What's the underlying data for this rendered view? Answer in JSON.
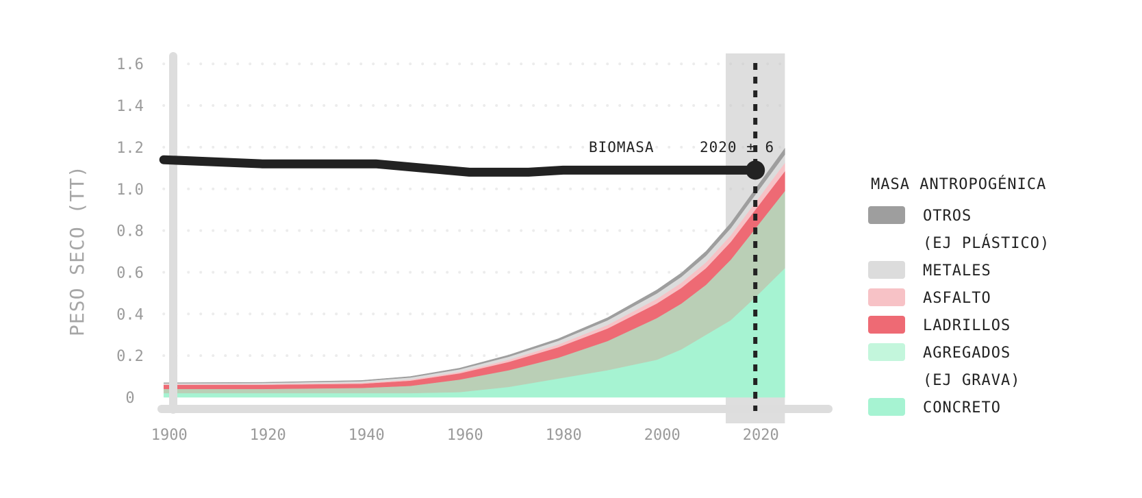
{
  "chart_data": {
    "type": "area",
    "ylabel": "PESO SECO (TT)",
    "xlabel": "",
    "xlim": [
      1899,
      2026.5
    ],
    "ylim": [
      0,
      1.65
    ],
    "x_ticks": [
      1900,
      1920,
      1940,
      1960,
      1980,
      2000,
      2020
    ],
    "y_ticks": [
      {
        "value": 0,
        "label": "0"
      },
      {
        "value": 0.2,
        "label": "0.2"
      },
      {
        "value": 0.4,
        "label": "0.4"
      },
      {
        "value": 0.6,
        "label": "0.6"
      },
      {
        "value": 0.8,
        "label": "0.8"
      },
      {
        "value": 1.0,
        "label": "1.0"
      },
      {
        "value": 1.2,
        "label": "1.2"
      },
      {
        "value": 1.4,
        "label": "1.4"
      },
      {
        "value": 1.6,
        "label": "1.6"
      }
    ],
    "grid": "horizontal-dotted",
    "x": [
      1900,
      1920,
      1940,
      1950,
      1960,
      1970,
      1980,
      1990,
      2000,
      2005,
      2010,
      2015,
      2020,
      2026
    ],
    "series": [
      {
        "name": "CONCRETO",
        "color": "#a6f3d2",
        "values": [
          0.02,
          0.02,
          0.02,
          0.02,
          0.025,
          0.05,
          0.09,
          0.13,
          0.18,
          0.23,
          0.3,
          0.37,
          0.48,
          0.62
        ]
      },
      {
        "name": "AGREGADOS (EJ GRAVA)",
        "color": "#bacfb6",
        "values": [
          0.02,
          0.02,
          0.025,
          0.035,
          0.06,
          0.08,
          0.1,
          0.14,
          0.2,
          0.22,
          0.24,
          0.29,
          0.33,
          0.37
        ]
      },
      {
        "name": "LADRILLOS",
        "color": "#ee6a74",
        "values": [
          0.02,
          0.02,
          0.02,
          0.025,
          0.03,
          0.04,
          0.05,
          0.06,
          0.07,
          0.075,
          0.08,
          0.085,
          0.09,
          0.095
        ]
      },
      {
        "name": "ASFALTO",
        "color": "#f7c2c6",
        "values": [
          0.002,
          0.003,
          0.004,
          0.005,
          0.007,
          0.01,
          0.013,
          0.017,
          0.022,
          0.025,
          0.028,
          0.032,
          0.035,
          0.04
        ]
      },
      {
        "name": "METALES",
        "color": "#dcdcdc",
        "values": [
          0.005,
          0.006,
          0.008,
          0.01,
          0.012,
          0.015,
          0.018,
          0.022,
          0.026,
          0.028,
          0.031,
          0.034,
          0.037,
          0.04
        ]
      },
      {
        "name": "OTROS (EJ PLÁSTICO)",
        "color": "#9e9e9e",
        "values": [
          0.003,
          0.003,
          0.004,
          0.005,
          0.006,
          0.008,
          0.01,
          0.013,
          0.017,
          0.019,
          0.022,
          0.025,
          0.028,
          0.03
        ]
      }
    ],
    "biomass": {
      "name": "BIOMASA",
      "color": "#222222",
      "x": [
        1900,
        1920,
        1943,
        1962,
        1974,
        1981,
        2020
      ],
      "values": [
        1.14,
        1.12,
        1.12,
        1.08,
        1.08,
        1.09,
        1.09
      ],
      "label": "BIOMASA",
      "marker_label": "2020 ± 6"
    },
    "highlight_range": [
      2014,
      2026
    ],
    "highlight_line_x": 2020,
    "legend": {
      "title": "MASA ANTROPOGÉNICA",
      "placement": "right",
      "entries": [
        {
          "label_lines": [
            "OTROS",
            "(EJ PLÁSTICO)"
          ],
          "color": "#9e9e9e"
        },
        {
          "label_lines": [
            "METALES"
          ],
          "color": "#dcdcdc"
        },
        {
          "label_lines": [
            "ASFALTO"
          ],
          "color": "#f7c2c6"
        },
        {
          "label_lines": [
            "LADRILLOS"
          ],
          "color": "#ee6a74"
        },
        {
          "label_lines": [
            "AGREGADOS",
            "(EJ GRAVA)"
          ],
          "color": "#c3f6dc"
        },
        {
          "label_lines": [
            "CONCRETO"
          ],
          "color": "#a6f3d2"
        }
      ]
    }
  }
}
